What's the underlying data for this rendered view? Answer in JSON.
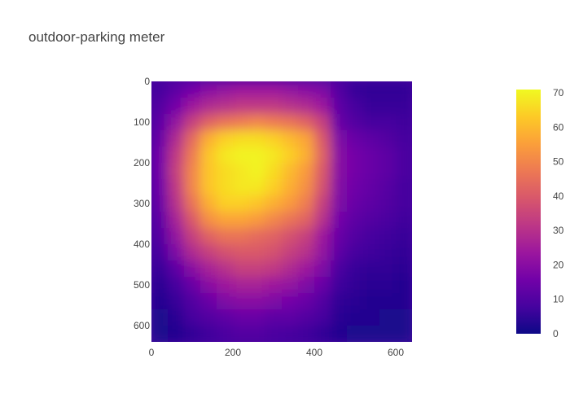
{
  "chart_data": {
    "type": "heatmap",
    "title": "outdoor-parking meter",
    "xlabel": "",
    "ylabel": "",
    "x_range": [
      0,
      640
    ],
    "y_range": [
      0,
      640
    ],
    "y_reversed": true,
    "x_ticks": [
      "0",
      "200",
      "400",
      "600"
    ],
    "y_ticks": [
      "0",
      "100",
      "200",
      "300",
      "400",
      "500",
      "600"
    ],
    "colorbar": {
      "min": 0,
      "max": 71,
      "ticks": [
        "0",
        "10",
        "20",
        "30",
        "40",
        "50",
        "60",
        "70"
      ],
      "colorscale": [
        "#0d0887",
        "#46039f",
        "#7201a8",
        "#9c179e",
        "#bd3786",
        "#d8576b",
        "#ed7953",
        "#fb9f3a",
        "#fdca26",
        "#f0f921"
      ]
    },
    "grid_cols": [
      0,
      40,
      80,
      120,
      160,
      200,
      240,
      280,
      320,
      360,
      400,
      440,
      480,
      520,
      560,
      600
    ],
    "grid_rows": [
      0,
      40,
      80,
      120,
      160,
      200,
      240,
      280,
      320,
      360,
      400,
      440,
      480,
      520,
      560,
      600
    ],
    "values": [
      [
        8,
        12,
        16,
        20,
        22,
        24,
        24,
        24,
        22,
        20,
        18,
        10,
        6,
        5,
        5,
        5
      ],
      [
        10,
        16,
        24,
        28,
        30,
        32,
        32,
        32,
        30,
        28,
        24,
        12,
        8,
        6,
        6,
        6
      ],
      [
        12,
        22,
        34,
        42,
        46,
        48,
        50,
        48,
        46,
        42,
        34,
        14,
        10,
        8,
        8,
        7
      ],
      [
        14,
        28,
        44,
        58,
        64,
        66,
        66,
        64,
        60,
        56,
        40,
        18,
        14,
        12,
        10,
        8
      ],
      [
        16,
        32,
        48,
        62,
        68,
        70,
        70,
        68,
        64,
        58,
        42,
        20,
        16,
        14,
        12,
        9
      ],
      [
        16,
        34,
        50,
        62,
        66,
        68,
        70,
        66,
        60,
        54,
        40,
        20,
        16,
        14,
        12,
        9
      ],
      [
        15,
        32,
        50,
        62,
        66,
        68,
        68,
        64,
        58,
        52,
        38,
        19,
        15,
        13,
        11,
        8
      ],
      [
        14,
        30,
        46,
        58,
        64,
        64,
        62,
        58,
        54,
        48,
        34,
        18,
        14,
        12,
        10,
        8
      ],
      [
        12,
        26,
        40,
        52,
        56,
        56,
        54,
        50,
        46,
        42,
        30,
        16,
        12,
        10,
        9,
        7
      ],
      [
        10,
        22,
        34,
        42,
        46,
        46,
        44,
        42,
        38,
        34,
        24,
        14,
        10,
        8,
        7,
        6
      ],
      [
        8,
        18,
        28,
        34,
        38,
        40,
        40,
        38,
        34,
        30,
        22,
        12,
        8,
        7,
        6,
        5
      ],
      [
        6,
        12,
        20,
        26,
        30,
        34,
        34,
        32,
        28,
        24,
        18,
        9,
        6,
        5,
        5,
        4
      ],
      [
        4,
        8,
        14,
        20,
        24,
        26,
        26,
        24,
        22,
        18,
        14,
        7,
        5,
        4,
        4,
        3
      ],
      [
        3,
        6,
        10,
        14,
        18,
        20,
        20,
        18,
        16,
        14,
        10,
        5,
        4,
        3,
        3,
        3
      ],
      [
        2,
        4,
        8,
        10,
        12,
        14,
        14,
        12,
        12,
        10,
        8,
        4,
        3,
        3,
        2,
        2
      ],
      [
        2,
        3,
        5,
        7,
        9,
        10,
        10,
        9,
        8,
        7,
        5,
        3,
        2,
        2,
        2,
        2
      ]
    ]
  }
}
